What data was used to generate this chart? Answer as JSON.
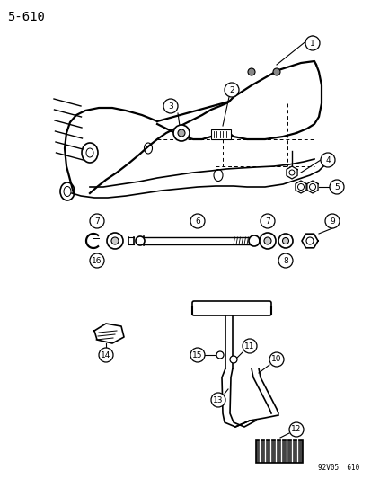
{
  "title": "5-610",
  "footer": "92V05  610",
  "bg_color": "#ffffff",
  "fg_color": "#000000",
  "fig_width": 4.14,
  "fig_height": 5.33,
  "dpi": 100
}
